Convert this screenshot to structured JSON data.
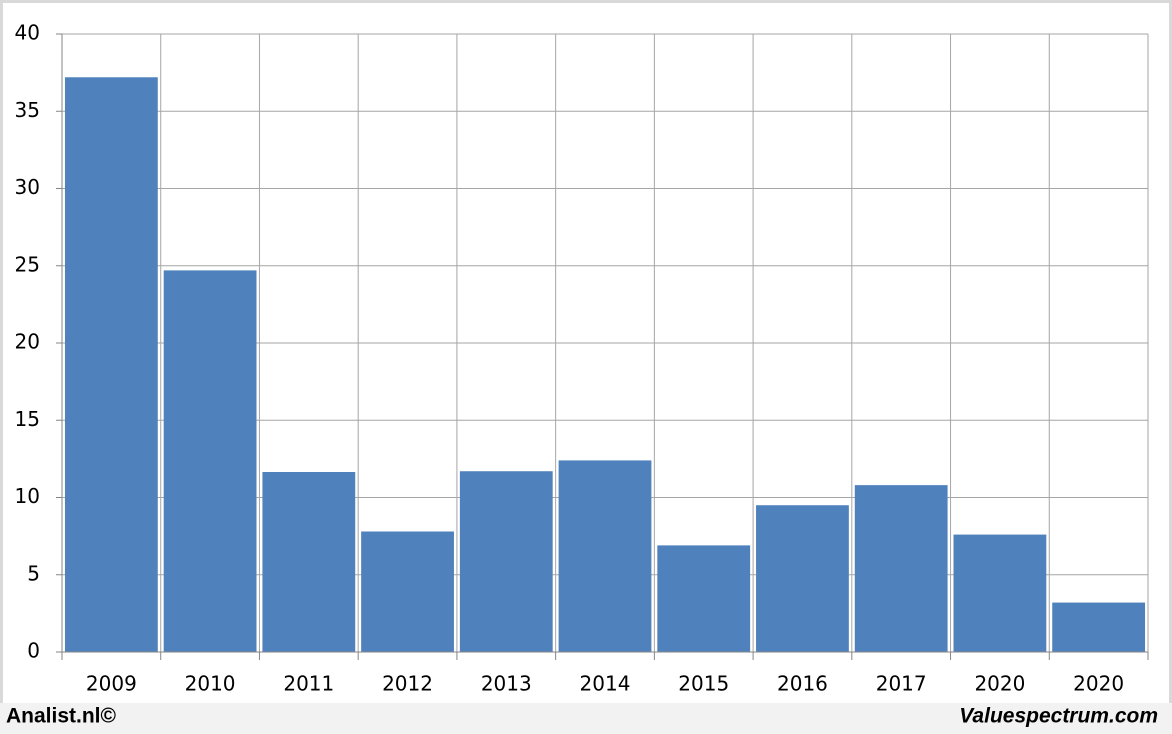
{
  "chart_data": {
    "type": "bar",
    "categories": [
      "2009",
      "2010",
      "2011",
      "2012",
      "2013",
      "2014",
      "2015",
      "2016",
      "2017",
      "2020",
      "2020"
    ],
    "values": [
      37.2,
      24.7,
      11.65,
      7.8,
      11.7,
      12.4,
      6.9,
      9.5,
      10.8,
      7.6,
      3.2
    ],
    "color": "#4f81bd",
    "ylim": [
      0,
      40
    ],
    "yticks": [
      0,
      5,
      10,
      15,
      20,
      25,
      30,
      35,
      40
    ],
    "grid": true
  },
  "footer": {
    "left": "Analist.nl©",
    "right": "Valuespectrum.com"
  }
}
